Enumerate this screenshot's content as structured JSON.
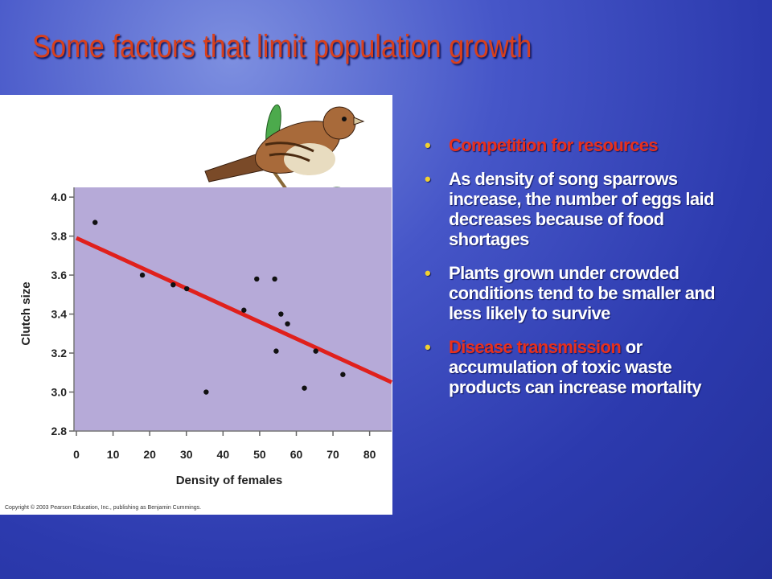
{
  "title": "Some factors that limit population growth",
  "bullets": [
    [
      {
        "text": "Competition for resources",
        "color": "#e8301c"
      }
    ],
    [
      {
        "text": "As density of song sparrows increase, the number of eggs laid decreases because of food shortages",
        "color": "#ffffff"
      }
    ],
    [
      {
        "text": "Plants grown under crowded conditions tend to be smaller and less likely to survive",
        "color": "#ffffff"
      }
    ],
    [
      {
        "text": "Disease transmission",
        "color": "#e8301c"
      },
      {
        "text": " or accumulation of toxic waste products can increase mortality",
        "color": "#ffffff"
      }
    ]
  ],
  "copyright": "Copyright © 2003 Pearson Education, Inc., publishing as Benjamin Cummings.",
  "chart_data": {
    "type": "scatter",
    "xlabel": "Density of females",
    "ylabel": "Clutch size",
    "x": [
      5.1,
      18,
      26.4,
      30.1,
      35.4,
      45.7,
      49.2,
      54.1,
      55.8,
      57.6,
      54.5,
      65.3,
      62.2,
      72.7
    ],
    "values": [
      3.87,
      3.6,
      3.55,
      3.53,
      3.0,
      3.42,
      3.58,
      3.58,
      3.4,
      3.35,
      3.21,
      3.21,
      3.02,
      3.09
    ],
    "color": "#111111",
    "trendline": {
      "x": [
        0,
        86
      ],
      "values": [
        3.79,
        3.05
      ],
      "color": "#e0201c"
    },
    "xlim": [
      0,
      86
    ],
    "ylim": [
      2.8,
      4.05
    ],
    "xticks": [
      0,
      10,
      20,
      30,
      40,
      50,
      60,
      70,
      80
    ],
    "yticks": [
      2.8,
      {
        "value": 3.0,
        "label": "3.0"
      },
      3.2,
      3.4,
      3.6,
      3.8,
      {
        "value": 4.0,
        "label": "4.0"
      }
    ],
    "plot_background": "#b6aad8"
  }
}
